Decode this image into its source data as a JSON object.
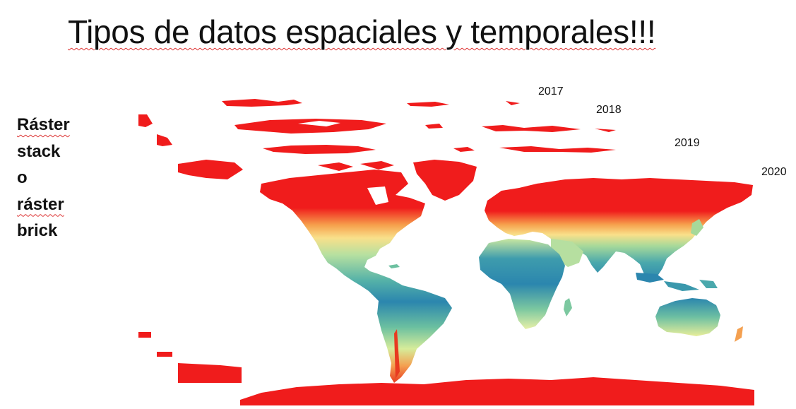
{
  "slide": {
    "title": "Tipos de datos espaciales y temporales!!!",
    "side_label": [
      "Ráster",
      "stack",
      "o",
      "ráster",
      "brick"
    ]
  },
  "layers": [
    {
      "year": "2017"
    },
    {
      "year": "2018"
    },
    {
      "year": "2019"
    },
    {
      "year": "2020"
    }
  ],
  "colors": {
    "cold": "#f01c1c",
    "warm_mid": "#f9d978",
    "cool_mid": "#a6d99a",
    "tropical": "#2b86ae",
    "border_red": "#ff0000"
  }
}
